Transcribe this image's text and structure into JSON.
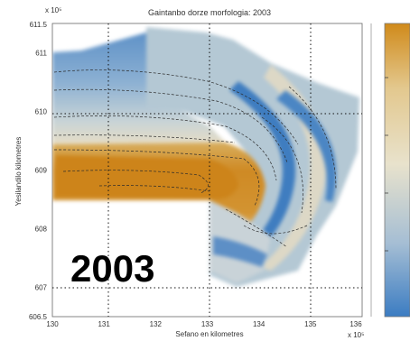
{
  "chart_data": {
    "type": "heatmap",
    "title": "Gaintanbo dorze morfologia: 2003",
    "xlabel": "Sefano en kilometres",
    "ylabel": "Yesilandilo kilometres",
    "x_exponent_label": "x 10⁵",
    "y_exponent_label": "x 10⁵",
    "xlim": [
      130,
      136
    ],
    "ylim": [
      606.5,
      611.5
    ],
    "x_ticks": [
      "130",
      "131",
      "132",
      "133",
      "134",
      "135",
      "136"
    ],
    "y_ticks": [
      "606.5",
      "607",
      "608",
      "609",
      "610",
      "611",
      "611.5"
    ],
    "grid": true,
    "grid_x": [
      131,
      133,
      135
    ],
    "grid_y": [
      607,
      610
    ],
    "colorbar": {
      "placement": "right",
      "colors": [
        "#d08a1a",
        "#e3c88e",
        "#e8e2cc",
        "#a5bed4",
        "#3b7cc2"
      ]
    },
    "annotation": "2003"
  }
}
